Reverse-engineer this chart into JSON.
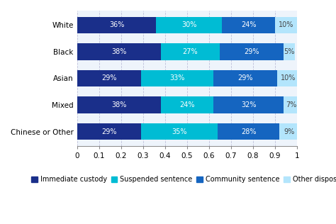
{
  "categories": [
    "White",
    "Black",
    "Asian",
    "Mixed",
    "Chinese or Other"
  ],
  "series": {
    "Immediate custody": [
      0.36,
      0.38,
      0.29,
      0.38,
      0.29
    ],
    "Suspended sentence": [
      0.3,
      0.27,
      0.33,
      0.24,
      0.35
    ],
    "Community sentence": [
      0.24,
      0.29,
      0.29,
      0.32,
      0.28
    ],
    "Other disposal": [
      0.1,
      0.05,
      0.1,
      0.07,
      0.09
    ]
  },
  "labels": {
    "Immediate custody": [
      "36%",
      "38%",
      "29%",
      "38%",
      "29%"
    ],
    "Suspended sentence": [
      "30%",
      "27%",
      "33%",
      "24%",
      "35%"
    ],
    "Community sentence": [
      "24%",
      "29%",
      "29%",
      "32%",
      "28%"
    ],
    "Other disposal": [
      "10%",
      "5%",
      "10%",
      "7%",
      "9%"
    ]
  },
  "colors": {
    "Immediate custody": "#1a2f8a",
    "Suspended sentence": "#00bcd4",
    "Community sentence": "#1565c0",
    "Other disposal": "#b3e5fc"
  },
  "legend_order": [
    "Immediate custody",
    "Suspended sentence",
    "Community sentence",
    "Other disposal"
  ],
  "xlim": [
    0,
    1
  ],
  "xticks": [
    0,
    0.1,
    0.2,
    0.3,
    0.4,
    0.5,
    0.6,
    0.7,
    0.8,
    0.9,
    1.0
  ],
  "xtick_labels": [
    "0",
    "0.1",
    "0.2",
    "0.3",
    "0.4",
    "0.5",
    "0.6",
    "0.7",
    "0.8",
    "0.9",
    "1"
  ],
  "background_color": "#ffffff",
  "plot_bg_color": "#eef4fb",
  "bar_height": 0.62,
  "label_fontsize": 7.0,
  "legend_fontsize": 7.0,
  "tick_fontsize": 7.5
}
